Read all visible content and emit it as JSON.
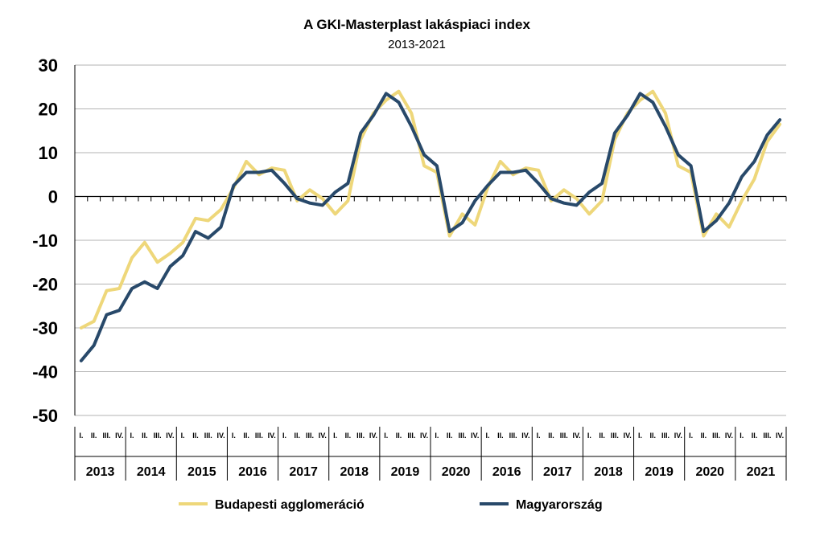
{
  "chart_data": {
    "type": "line",
    "title": "A GKI-Masterplast lakáspiaci index",
    "subtitle": "2013-2021",
    "ylim": [
      -50,
      30
    ],
    "yticks": [
      30,
      20,
      10,
      0,
      -10,
      -20,
      -30,
      -40,
      -50
    ],
    "grid": true,
    "legend_position": "bottom",
    "quarter_labels": [
      "I.",
      "II.",
      "III.",
      "IV."
    ],
    "year_groups": [
      "2013",
      "2014",
      "2015",
      "2016",
      "2017",
      "2018",
      "2019",
      "2020",
      "2016",
      "2017",
      "2018",
      "2019",
      "2020",
      "2021"
    ],
    "series": [
      {
        "name": "Budapesti agglomeráció",
        "color": "#eed77a",
        "values": [
          -30,
          -28.5,
          -21.5,
          -21,
          -14,
          -10.5,
          -15,
          -13,
          -10.5,
          -5,
          -5.5,
          -3,
          2,
          8,
          5,
          6.5,
          6,
          -1,
          1.5,
          -0.5,
          -4,
          -1,
          13,
          19,
          22,
          24,
          19,
          7,
          5.5,
          -9,
          -4,
          -6.5,
          2,
          8,
          5,
          6.5,
          6,
          -1,
          1.5,
          -0.5,
          -4,
          -1,
          13,
          19,
          22,
          24,
          19,
          7,
          5.5,
          -9,
          -4,
          -7,
          -1,
          4,
          12.5,
          16.5
        ]
      },
      {
        "name": "Magyarország",
        "color": "#28496a",
        "values": [
          -37.5,
          -34,
          -27,
          -26,
          -21,
          -19.5,
          -21,
          -16,
          -13.5,
          -8,
          -9.5,
          -7,
          2.5,
          5.5,
          5.5,
          6,
          3,
          -0.5,
          -1.5,
          -2,
          1,
          3,
          14.5,
          18.5,
          23.5,
          21.5,
          16,
          9.5,
          7,
          -8,
          -6,
          -1,
          2.5,
          5.5,
          5.5,
          6,
          3,
          -0.5,
          -1.5,
          -2,
          1,
          3,
          14.5,
          18.5,
          23.5,
          21.5,
          16,
          9.5,
          7,
          -8,
          -5.5,
          -1.5,
          4.5,
          8,
          14,
          17.5
        ]
      }
    ]
  }
}
